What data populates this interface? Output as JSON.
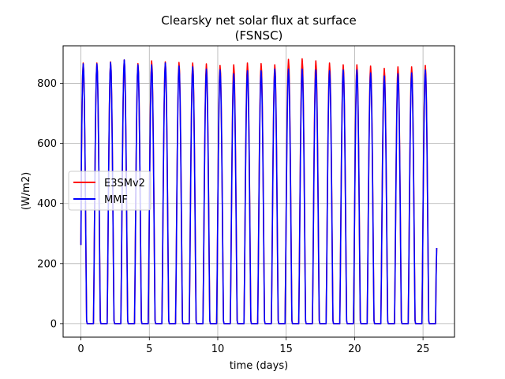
{
  "chart_data": {
    "type": "line",
    "title_line1": "Clearsky net solar flux at surface",
    "title_line2": "(FSNSC)",
    "xlabel": "time (days)",
    "ylabel": "(W/m2)",
    "xlim": [
      -1.3,
      27.3
    ],
    "ylim": [
      -45,
      925
    ],
    "xticks": [
      0,
      5,
      10,
      15,
      20,
      25
    ],
    "xtick_labels": [
      "0",
      "5",
      "10",
      "15",
      "20",
      "25"
    ],
    "yticks": [
      0,
      200,
      400,
      600,
      800
    ],
    "ytick_labels": [
      "0",
      "200",
      "400",
      "600",
      "800"
    ],
    "grid": true,
    "legend_position": "center-left",
    "day_start": 0,
    "day_end": 26,
    "initial_value": 262,
    "final_value": 252,
    "night_fraction_start": 0.42,
    "night_fraction_end": 0.92,
    "series": [
      {
        "name": "E3SMv2",
        "color": "#ff0000",
        "daily_peaks": [
          868,
          872,
          878,
          866,
          875,
          872,
          870,
          868,
          865,
          860,
          862,
          868,
          866,
          862,
          880,
          882,
          875,
          868,
          862,
          862,
          858,
          850,
          855,
          855,
          860,
          858
        ]
      },
      {
        "name": "MMF",
        "color": "#0000ff",
        "daily_peaks": [
          865,
          870,
          878,
          862,
          862,
          868,
          858,
          855,
          848,
          845,
          832,
          842,
          842,
          848,
          848,
          848,
          845,
          842,
          845,
          845,
          835,
          825,
          832,
          835,
          845,
          840
        ]
      }
    ]
  }
}
